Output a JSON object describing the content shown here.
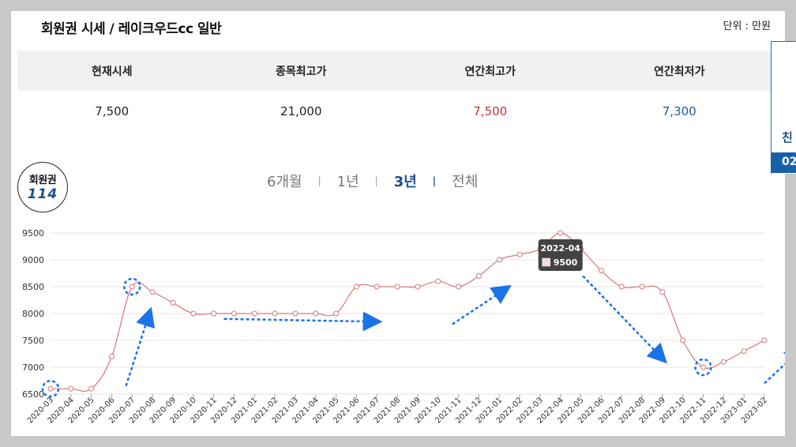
{
  "header": {
    "title": "회원권 시세 / 레이크우드cc 일반",
    "unit": "단위 : 만원"
  },
  "summary": {
    "columns": [
      "현재시세",
      "종목최고가",
      "연간최고가",
      "연간최저가"
    ],
    "values": [
      "7,500",
      "21,000",
      "7,500",
      "7,300"
    ]
  },
  "badge": {
    "line1": "회원권",
    "line2": "114"
  },
  "periods": [
    {
      "label": "6개월",
      "active": false
    },
    {
      "label": "1년",
      "active": false
    },
    {
      "label": "3년",
      "active": true
    },
    {
      "label": "전체",
      "active": false
    }
  ],
  "side_panel": {
    "text": "친",
    "bar": "02"
  },
  "tooltip": {
    "date": "2022-04",
    "value": "9500"
  },
  "colors": {
    "line": "#d9767a",
    "accent": "#1d4f8c",
    "annotation": "#1a73e8",
    "high": "#c8313f",
    "low": "#1e5b9e"
  },
  "chart_data": {
    "type": "line",
    "x": [
      "2020-03",
      "2020-04",
      "2020-05",
      "2020-06",
      "2020-07",
      "2020-08",
      "2020-09",
      "2020-10",
      "2020-11",
      "2020-12",
      "2021-01",
      "2021-02",
      "2021-03",
      "2021-04",
      "2021-05",
      "2021-06",
      "2021-07",
      "2021-08",
      "2021-09",
      "2021-10",
      "2021-11",
      "2021-12",
      "2022-01",
      "2022-02",
      "2022-03",
      "2022-04",
      "2022-05",
      "2022-06",
      "2022-07",
      "2022-08",
      "2022-09",
      "2022-10",
      "2022-11",
      "2022-12",
      "2023-01",
      "2023-02"
    ],
    "series": [
      {
        "values": [
          6600,
          6600,
          6600,
          7200,
          8500,
          8400,
          8200,
          8000,
          8000,
          8000,
          8000,
          8000,
          8000,
          8000,
          8000,
          8500,
          8500,
          8500,
          8500,
          8600,
          8500,
          8700,
          9000,
          9100,
          9200,
          9500,
          9200,
          8800,
          8500,
          8500,
          8400,
          7500,
          7000,
          7100,
          7300,
          7500
        ]
      }
    ],
    "yticks": [
      6500,
      7000,
      7500,
      8000,
      8500,
      9000,
      9500
    ],
    "ylim": [
      6500,
      9500
    ],
    "grid": true
  }
}
